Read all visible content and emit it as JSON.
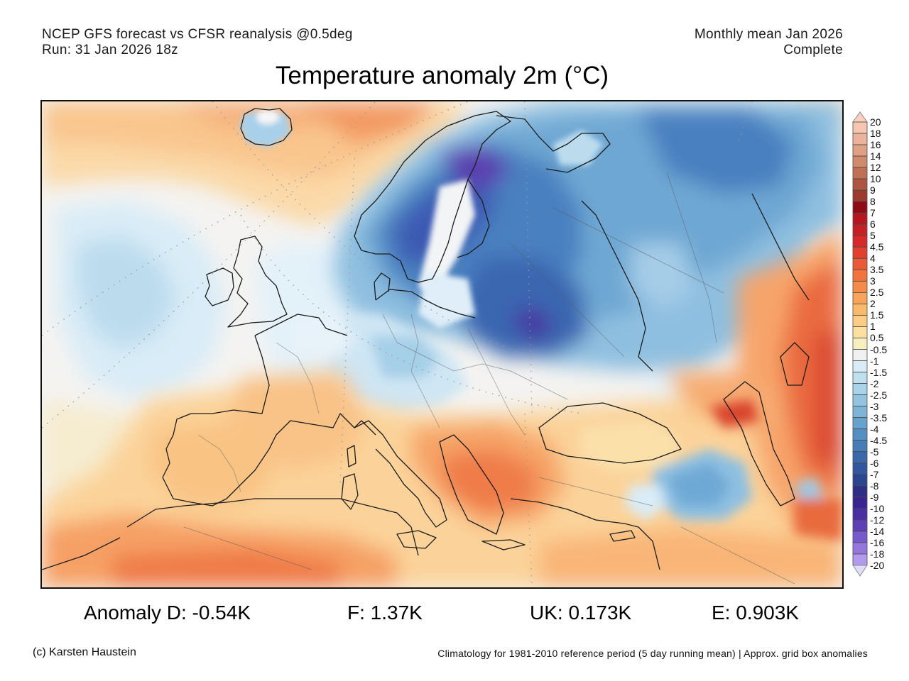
{
  "header": {
    "source_line": "NCEP GFS forecast vs CFSR reanalysis @0.5deg",
    "run_line": "Run: 31 Jan 2026 18z",
    "period_line": "Monthly mean Jan 2026",
    "status_line": "Complete",
    "title": "Temperature anomaly 2m (°C)"
  },
  "colorbar": {
    "labels": [
      "20",
      "18",
      "16",
      "14",
      "12",
      "10",
      "9",
      "8",
      "7",
      "6",
      "5",
      "4.5",
      "4",
      "3.5",
      "3",
      "2.5",
      "2",
      "1.5",
      "1",
      "0.5",
      "-0.5",
      "-1",
      "-1.5",
      "-2",
      "-2.5",
      "-3",
      "-3.5",
      "-4",
      "-4.5",
      "-5",
      "-6",
      "-7",
      "-8",
      "-9",
      "-10",
      "-12",
      "-14",
      "-16",
      "-18",
      "-20"
    ],
    "colors": [
      "#f6c6b1",
      "#ebb39b",
      "#dfa184",
      "#d08a6c",
      "#c07056",
      "#ad5541",
      "#9c3a2d",
      "#8e0c15",
      "#b41720",
      "#c71f26",
      "#d62a2a",
      "#e1402f",
      "#eb5a36",
      "#f1743f",
      "#f58b4b",
      "#f8a25a",
      "#fbb96c",
      "#fccd84",
      "#fde0a1",
      "#f8efc0",
      "#f1f1f1",
      "#d8edf8",
      "#bfe0ef",
      "#a8d3e8",
      "#93c4df",
      "#7eb4d6",
      "#68a3cd",
      "#5690c3",
      "#467db7",
      "#3a69aa",
      "#32579d",
      "#2c4590",
      "#2f2e86",
      "#3a2490",
      "#4b2ea3",
      "#5e40b6",
      "#7859cb",
      "#9576dd",
      "#b29bec",
      "#d2c8f7"
    ],
    "upper_arrow_color": "#f8d0bd",
    "lower_arrow_color": "#e1dcfb"
  },
  "stats": {
    "d": "Anomaly D: -0.54K",
    "f": "F: 1.37K",
    "uk": "UK: 0.173K",
    "e": "E: 0.903K"
  },
  "footer": {
    "credit": "(c) Karsten Haustein",
    "note": "Climatology for 1981-2010 reference period (5 day running mean) | Approx. grid box anomalies"
  }
}
